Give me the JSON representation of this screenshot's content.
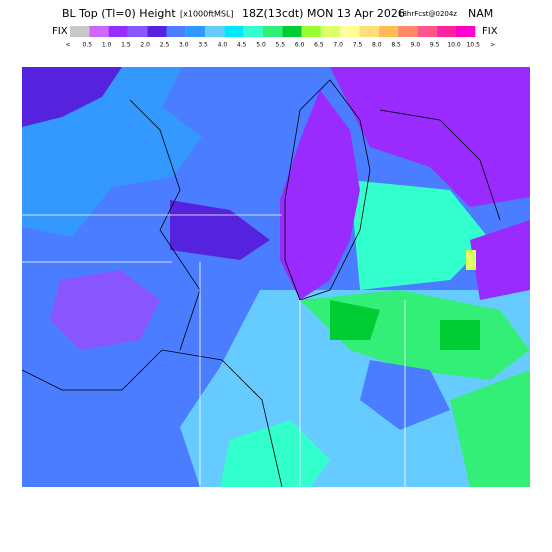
{
  "header": {
    "title": "BL Top (Tl=0) Height",
    "units": "[x1000ftMSL]",
    "time": "18Z(13cdt) MON 13 Apr 2026",
    "forecast": "18hrFcst@0204z",
    "model": "NAM"
  },
  "colorbar": {
    "left_label": "FIX",
    "right_label": "FIX",
    "colors": [
      "#c8c8c8",
      "#cc66ff",
      "#9a2bff",
      "#8855ff",
      "#5522dd",
      "#4a7dff",
      "#3399ff",
      "#66ccff",
      "#00e8ff",
      "#33ffcc",
      "#33ee77",
      "#00cc33",
      "#99ff33",
      "#ddff66",
      "#ffff99",
      "#ffdd77",
      "#ffbb55",
      "#ff8866",
      "#ff5588",
      "#ff2299",
      "#ff00cc"
    ],
    "labels": [
      "<",
      "0.5",
      "1.0",
      "1.5",
      "2.0",
      "2.5",
      "3.0",
      "3.5",
      "4.0",
      "4.5",
      "5.0",
      "5.5",
      "6.0",
      "6.5",
      "7.0",
      "7.5",
      "8.0",
      "8.5",
      "9.0",
      "9.5",
      "10.0",
      "10.5",
      ">"
    ]
  }
}
